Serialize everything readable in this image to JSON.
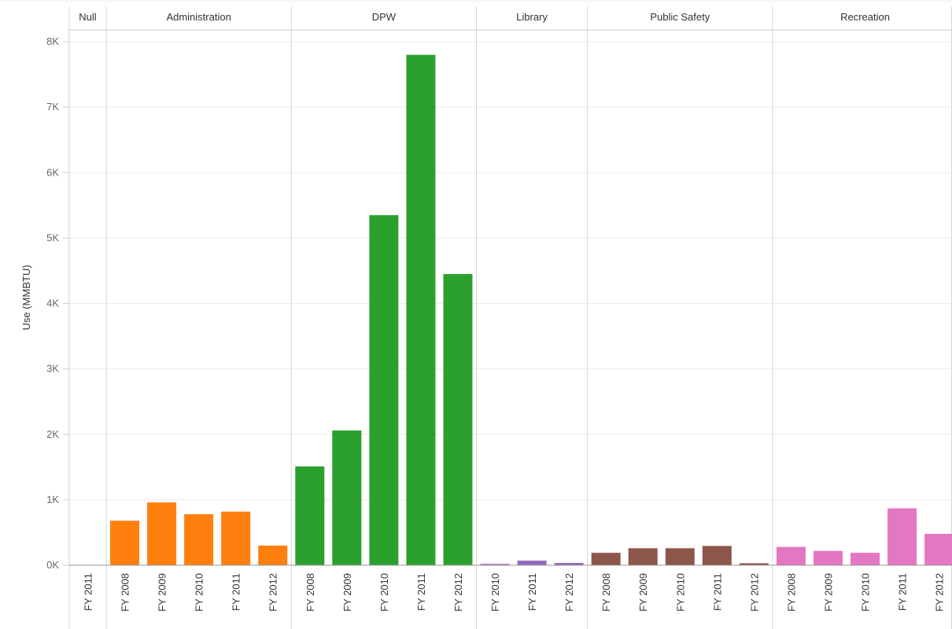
{
  "chart_data": {
    "type": "bar",
    "title": "",
    "xlabel": "",
    "ylabel": "Use (MMBTU)",
    "ylim": [
      0,
      8000
    ],
    "y_ticks": [
      "0K",
      "1K",
      "2K",
      "3K",
      "4K",
      "5K",
      "6K",
      "7K",
      "8K"
    ],
    "grid": true,
    "panels": [
      {
        "name": "Null",
        "color": "#ffffff",
        "categories": [
          "FY 2011"
        ],
        "values": [
          0
        ]
      },
      {
        "name": "Administration",
        "color": "#ff7f0e",
        "categories": [
          "FY 2008",
          "FY 2009",
          "FY 2010",
          "FY 2011",
          "FY 2012"
        ],
        "values": [
          680,
          960,
          780,
          820,
          300
        ]
      },
      {
        "name": "DPW",
        "color": "#2ca02c",
        "categories": [
          "FY 2008",
          "FY 2009",
          "FY 2010",
          "FY 2011",
          "FY 2012"
        ],
        "values": [
          1510,
          2060,
          5350,
          7800,
          4450
        ]
      },
      {
        "name": "Library",
        "color": "#9467bd",
        "categories": [
          "FY 2010",
          "FY 2011",
          "FY 2012"
        ],
        "values": [
          20,
          70,
          35
        ]
      },
      {
        "name": "Public Safety",
        "color": "#8c564b",
        "categories": [
          "FY 2008",
          "FY 2009",
          "FY 2010",
          "FY 2011",
          "FY 2012"
        ],
        "values": [
          190,
          260,
          260,
          295,
          30
        ]
      },
      {
        "name": "Recreation",
        "color": "#e377c2",
        "categories": [
          "FY 2008",
          "FY 2009",
          "FY 2010",
          "FY 2011",
          "FY 2012"
        ],
        "values": [
          280,
          220,
          190,
          870,
          480
        ]
      }
    ]
  }
}
